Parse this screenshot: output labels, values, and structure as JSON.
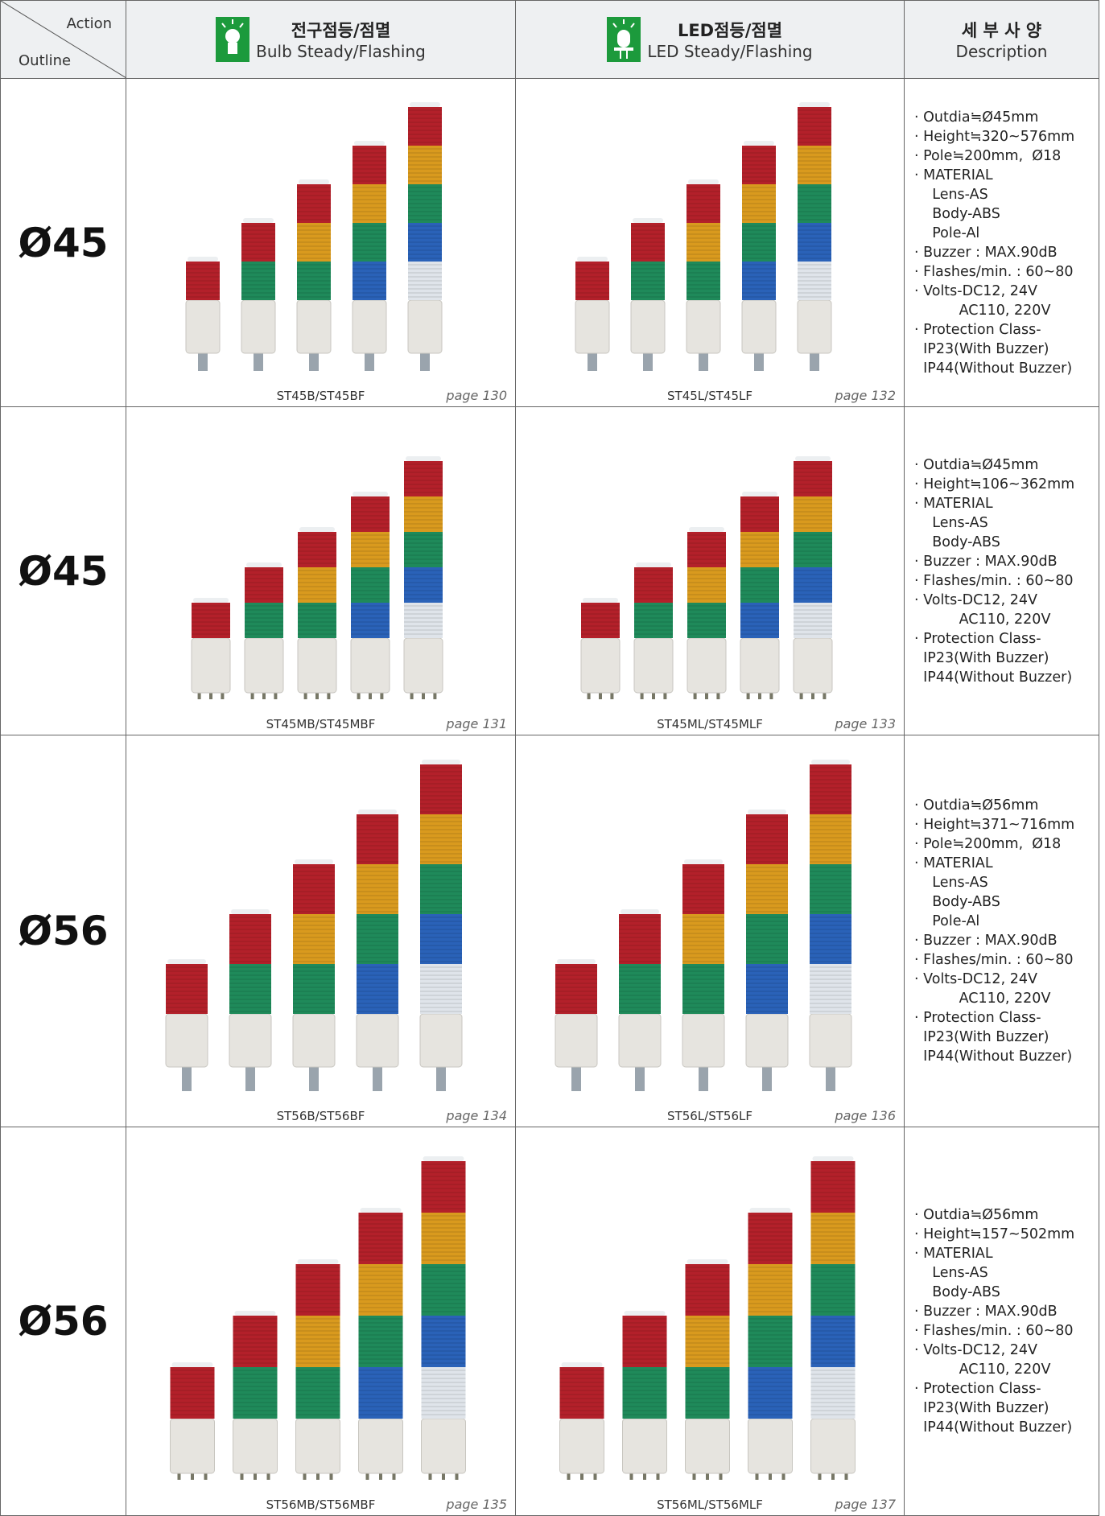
{
  "header": {
    "corner_top": "Action",
    "corner_bottom": "Outline",
    "columns": [
      {
        "title": "전구점등/점멸",
        "subtitle": "Bulb Steady/Flashing"
      },
      {
        "title": "LED점등/점멸",
        "subtitle": "LED Steady/Flashing"
      },
      {
        "title": "세 부 사 양",
        "subtitle": "Description"
      }
    ]
  },
  "rows": [
    {
      "outline": "Ø45",
      "bulb": {
        "model": "ST45B/ST45BF",
        "page": "page 130"
      },
      "led": {
        "model": "ST45L/ST45LF",
        "page": "page 132"
      },
      "description": [
        "· Outdia≒Ø45mm",
        "· Height≒320~576mm",
        "· Pole≒200mm,  Ø18",
        "· MATERIAL",
        "    Lens-AS",
        "    Body-ABS",
        "    Pole-Al",
        "· Buzzer : MAX.90dB",
        "· Flashes/min. : 60~80",
        "· Volts-DC12, 24V",
        "          AC110, 220V",
        "· Protection Class-",
        "  IP23(With Buzzer)",
        "  IP44(Without Buzzer)"
      ]
    },
    {
      "outline": "Ø45",
      "bulb": {
        "model": "ST45MB/ST45MBF",
        "page": "page 131"
      },
      "led": {
        "model": "ST45ML/ST45MLF",
        "page": "page 133"
      },
      "description": [
        "· Outdia≒Ø45mm",
        "· Height≒106~362mm",
        "· MATERIAL",
        "    Lens-AS",
        "    Body-ABS",
        "· Buzzer : MAX.90dB",
        "· Flashes/min. : 60~80",
        "· Volts-DC12, 24V",
        "          AC110, 220V",
        "· Protection Class-",
        "  IP23(With Buzzer)",
        "  IP44(Without Buzzer)"
      ]
    },
    {
      "outline": "Ø56",
      "bulb": {
        "model": "ST56B/ST56BF",
        "page": "page 134"
      },
      "led": {
        "model": "ST56L/ST56LF",
        "page": "page 136"
      },
      "description": [
        "· Outdia≒Ø56mm",
        "· Height≒371~716mm",
        "· Pole≒200mm,  Ø18",
        "· MATERIAL",
        "    Lens-AS",
        "    Body-ABS",
        "    Pole-Al",
        "· Buzzer : MAX.90dB",
        "· Flashes/min. : 60~80",
        "· Volts-DC12, 24V",
        "          AC110, 220V",
        "· Protection Class-",
        "  IP23(With Buzzer)",
        "  IP44(Without Buzzer)"
      ]
    },
    {
      "outline": "Ø56",
      "bulb": {
        "model": "ST56MB/ST56MBF",
        "page": "page 135"
      },
      "led": {
        "model": "ST56ML/ST56MLF",
        "page": "page 137"
      },
      "description": [
        "· Outdia≒Ø56mm",
        "· Height≒157~502mm",
        "· MATERIAL",
        "    Lens-AS",
        "    Body-ABS",
        "· Buzzer : MAX.90dB",
        "· Flashes/min. : 60~80",
        "· Volts-DC12, 24V",
        "          AC110, 220V",
        "· Protection Class-",
        "  IP23(With Buzzer)",
        "  IP44(Without Buzzer)"
      ]
    }
  ]
}
